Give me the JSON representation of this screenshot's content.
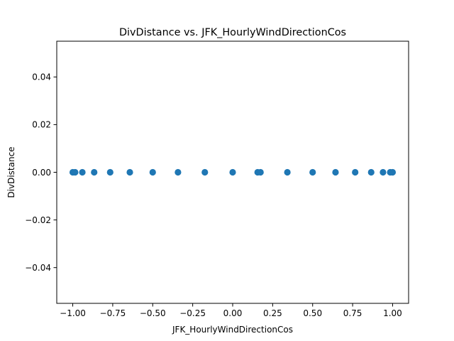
{
  "chart_data": {
    "type": "scatter",
    "title": "DivDistance vs. JFK_HourlyWindDirectionCos",
    "xlabel": "JFK_HourlyWindDirectionCos",
    "ylabel": "DivDistance",
    "xlim": [
      -1.1,
      1.1
    ],
    "ylim": [
      -0.055,
      0.055
    ],
    "xticks": [
      -1.0,
      -0.75,
      -0.5,
      -0.25,
      0.0,
      0.25,
      0.5,
      0.75,
      1.0
    ],
    "xtick_labels": [
      "−1.00",
      "−0.75",
      "−0.50",
      "−0.25",
      "0.00",
      "0.25",
      "0.50",
      "0.75",
      "1.00"
    ],
    "yticks": [
      -0.04,
      -0.02,
      0.0,
      0.02,
      0.04
    ],
    "ytick_labels": [
      "−0.04",
      "−0.02",
      "0.00",
      "0.02",
      "0.04"
    ],
    "grid": false,
    "marker_color": "#1f77b4",
    "x": [
      -1.0,
      -0.985,
      -0.94,
      -0.866,
      -0.766,
      -0.643,
      -0.5,
      -0.342,
      -0.174,
      0.0,
      0.156,
      0.174,
      0.342,
      0.5,
      0.643,
      0.766,
      0.866,
      0.94,
      0.985,
      1.0
    ],
    "y": [
      0,
      0,
      0,
      0,
      0,
      0,
      0,
      0,
      0,
      0,
      0,
      0,
      0,
      0,
      0,
      0,
      0,
      0,
      0,
      0
    ]
  }
}
